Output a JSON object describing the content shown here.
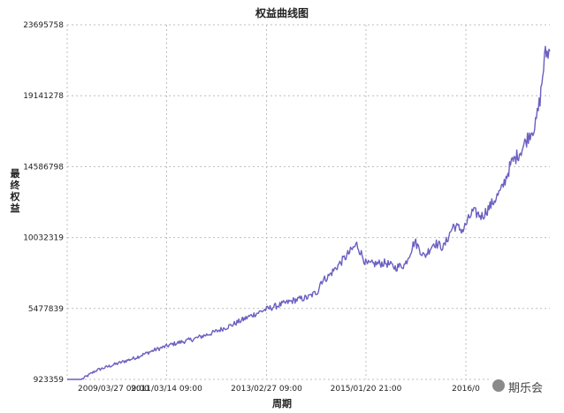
{
  "chart_data": {
    "type": "line",
    "title": "权益曲线图",
    "xlabel": "周期",
    "ylabel": "最终权益",
    "yticks": [
      "923359",
      "5477839",
      "10032319",
      "14586798",
      "19141278",
      "23695758"
    ],
    "ytick_values": [
      923359,
      5477839,
      10032319,
      14586798,
      19141278,
      23695758
    ],
    "ylim": [
      923359,
      23695758
    ],
    "xticks": [
      "2009/03/27 09:00",
      "2011/03/14 09:00",
      "2013/02/27 09:00",
      "2015/01/20 21:00",
      "2016/0"
    ],
    "xtick_positions": [
      0,
      0.206,
      0.413,
      0.619,
      0.826
    ],
    "grid": true,
    "series_color": "#6a5fc1",
    "series": [
      {
        "x": [
          0,
          0.03,
          0.06,
          0.1,
          0.14,
          0.18,
          0.22,
          0.26,
          0.3,
          0.34,
          0.38,
          0.41,
          0.44,
          0.47,
          0.5,
          0.52,
          0.525,
          0.54,
          0.56,
          0.6,
          0.62,
          0.66,
          0.68,
          0.7,
          0.72,
          0.74,
          0.76,
          0.78,
          0.8,
          0.82,
          0.84,
          0.86,
          0.88,
          0.9,
          0.92,
          0.94,
          0.95,
          0.96,
          0.97,
          0.98,
          0.99,
          1.0
        ],
        "values": [
          923359,
          923359,
          1500000,
          1900000,
          2300000,
          2800000,
          3200000,
          3500000,
          3900000,
          4400000,
          5000000,
          5400000,
          5700000,
          6000000,
          6200000,
          6600000,
          7200000,
          7500000,
          8200000,
          9600000,
          8300000,
          8400000,
          8100000,
          8300000,
          9800000,
          8800000,
          9700000,
          9400000,
          10800000,
          10500000,
          11700000,
          11400000,
          12200000,
          13100000,
          14800000,
          15600000,
          16200000,
          16800000,
          17200000,
          19000000,
          21800000,
          22000000
        ]
      }
    ]
  },
  "watermark": {
    "text": "期乐会"
  }
}
